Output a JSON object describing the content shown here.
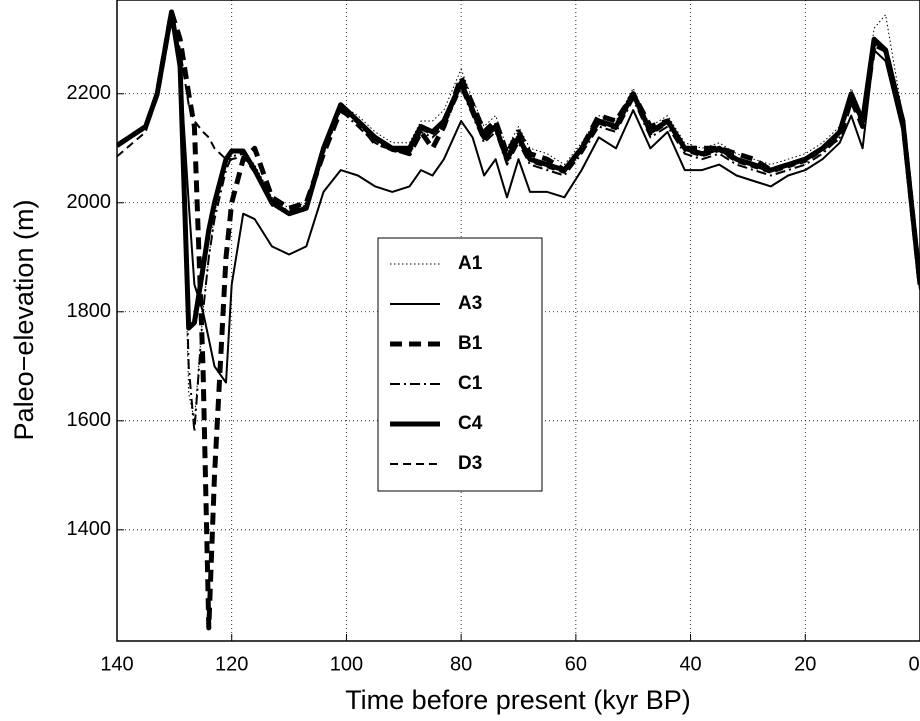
{
  "chart_data": {
    "type": "line",
    "xlabel": "Time before present (kyr BP)",
    "ylabel": "Paleo−elevation (m)",
    "x": [
      140,
      135,
      133,
      130.5,
      129,
      127.5,
      126.5,
      125,
      124,
      123,
      121,
      120,
      118,
      116,
      113,
      110,
      107,
      104,
      101,
      98,
      95,
      92,
      89,
      87,
      85,
      83,
      80,
      78,
      76,
      74,
      72,
      70,
      68,
      65,
      62,
      59,
      56,
      53,
      50,
      47,
      44,
      41,
      38,
      35,
      32,
      29,
      26,
      23,
      20,
      17,
      14,
      12,
      10,
      8,
      6,
      3,
      0
    ],
    "xlim": [
      140,
      0
    ],
    "xticks": [
      140,
      120,
      100,
      80,
      60,
      40,
      20,
      0
    ],
    "ylim": [
      1196,
      2372
    ],
    "yticks": [
      1400,
      1600,
      1800,
      2000,
      2200
    ],
    "grid": true,
    "legend": "center",
    "series": [
      {
        "name": "A1",
        "color": "#000000",
        "linestyle": "dotted",
        "linewidth": 1,
        "values": [
          2105,
          2140,
          2200,
          2350,
          2260,
          1650,
          1600,
          1800,
          1900,
          1980,
          2070,
          2090,
          2095,
          2070,
          2010,
          1990,
          2000,
          2110,
          2180,
          2160,
          2130,
          2110,
          2110,
          2150,
          2150,
          2170,
          2245,
          2190,
          2140,
          2160,
          2100,
          2140,
          2100,
          2090,
          2070,
          2110,
          2160,
          2150,
          2210,
          2140,
          2160,
          2110,
          2100,
          2110,
          2090,
          2080,
          2070,
          2080,
          2090,
          2110,
          2140,
          2210,
          2160,
          2320,
          2345,
          2160,
          1860
        ]
      },
      {
        "name": "A3",
        "color": "#000000",
        "linestyle": "solid",
        "linewidth": 2,
        "values": [
          2105,
          2140,
          2200,
          2350,
          2250,
          2000,
          1850,
          1800,
          1750,
          1700,
          1670,
          1850,
          1980,
          1970,
          1920,
          1905,
          1920,
          2020,
          2060,
          2050,
          2030,
          2020,
          2030,
          2060,
          2050,
          2080,
          2150,
          2120,
          2050,
          2080,
          2010,
          2080,
          2020,
          2020,
          2010,
          2060,
          2120,
          2100,
          2170,
          2100,
          2130,
          2060,
          2060,
          2070,
          2050,
          2040,
          2030,
          2050,
          2060,
          2080,
          2110,
          2160,
          2100,
          2280,
          2260,
          2130,
          1840
        ]
      },
      {
        "name": "B1",
        "color": "#000000",
        "linestyle": "dashed",
        "linewidth": 5,
        "values": [
          2105,
          2140,
          2200,
          2350,
          2300,
          2200,
          2140,
          1700,
          1220,
          1500,
          1900,
          2000,
          2080,
          2100,
          2010,
          1990,
          2000,
          2090,
          2170,
          2150,
          2110,
          2100,
          2090,
          2130,
          2100,
          2140,
          2230,
          2180,
          2130,
          2150,
          2090,
          2130,
          2090,
          2080,
          2060,
          2100,
          2160,
          2150,
          2200,
          2140,
          2150,
          2100,
          2100,
          2100,
          2090,
          2080,
          2060,
          2070,
          2080,
          2100,
          2120,
          2190,
          2140,
          2290,
          2280,
          2150,
          1850
        ]
      },
      {
        "name": "C1",
        "color": "#000000",
        "linestyle": "dashdot",
        "linewidth": 2,
        "values": [
          2105,
          2140,
          2200,
          2350,
          2250,
          1700,
          1580,
          1800,
          1900,
          1970,
          2060,
          2085,
          2090,
          2060,
          2000,
          1985,
          1995,
          2090,
          2170,
          2140,
          2110,
          2095,
          2090,
          2130,
          2120,
          2140,
          2210,
          2160,
          2110,
          2130,
          2070,
          2110,
          2070,
          2060,
          2050,
          2090,
          2140,
          2130,
          2190,
          2120,
          2140,
          2090,
          2080,
          2090,
          2070,
          2060,
          2050,
          2060,
          2070,
          2090,
          2120,
          2190,
          2140,
          2290,
          2280,
          2140,
          1850
        ]
      },
      {
        "name": "C4",
        "color": "#000000",
        "linestyle": "solid",
        "linewidth": 5,
        "values": [
          2105,
          2140,
          2200,
          2350,
          2250,
          1770,
          1780,
          1880,
          1950,
          2000,
          2080,
          2095,
          2095,
          2060,
          2000,
          1980,
          1990,
          2100,
          2180,
          2150,
          2120,
          2100,
          2100,
          2140,
          2130,
          2150,
          2220,
          2170,
          2120,
          2140,
          2080,
          2120,
          2080,
          2070,
          2060,
          2100,
          2150,
          2140,
          2200,
          2130,
          2150,
          2100,
          2090,
          2100,
          2080,
          2070,
          2060,
          2070,
          2080,
          2100,
          2130,
          2200,
          2150,
          2300,
          2280,
          2150,
          1850
        ]
      },
      {
        "name": "D3",
        "color": "#000000",
        "linestyle": "dashed",
        "linewidth": 2,
        "values": [
          2085,
          2130,
          2200,
          2350,
          2280,
          2180,
          2150,
          2130,
          2120,
          2100,
          2080,
          2080,
          2085,
          2055,
          1995,
          1980,
          1990,
          2095,
          2175,
          2145,
          2115,
          2095,
          2095,
          2135,
          2125,
          2145,
          2215,
          2165,
          2115,
          2135,
          2075,
          2115,
          2075,
          2065,
          2055,
          2095,
          2145,
          2135,
          2195,
          2125,
          2145,
          2095,
          2085,
          2095,
          2075,
          2065,
          2055,
          2065,
          2075,
          2095,
          2125,
          2195,
          2145,
          2295,
          2275,
          2145,
          1845
        ]
      }
    ]
  }
}
